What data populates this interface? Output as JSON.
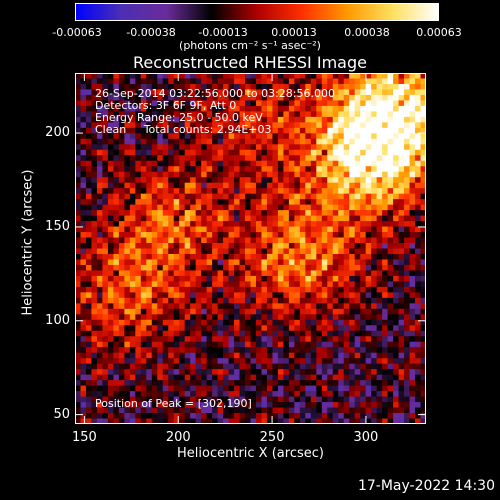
{
  "colorbar": {
    "ticks": [
      "-0.00063",
      "-0.00038",
      "-0.00013",
      "0.00013",
      "0.00038",
      "0.00063"
    ],
    "unit_label": "(photons cm⁻² s⁻¹ asec⁻²)",
    "colormap": [
      "#0000ff",
      "#4b2fb4",
      "#6a2c9a",
      "#000000",
      "#b00000",
      "#ff3000",
      "#ff9a00",
      "#ffe060",
      "#ffffff"
    ]
  },
  "annotations": {
    "line1": "26-Sep-2014 03:22:56.000 to 03:28:56.000",
    "line2": "Detectors: 3F 6F 9F, Att 0",
    "line3": "Energy Range: 25.0 - 50.0 keV",
    "line4": "Clean     Total counts: 2.94E+03",
    "peak": "Position of Peak = [302,190]"
  },
  "footer": {
    "timestamp": "17-May-2022 14:30"
  },
  "chart_data": {
    "type": "heatmap",
    "title": "Reconstructed RHESSI Image",
    "xlabel": "Heliocentric X (arcsec)",
    "ylabel": "Heliocentric Y (arcsec)",
    "xlim": [
      145,
      332
    ],
    "ylim": [
      45,
      232
    ],
    "xticks": [
      150,
      200,
      250,
      300
    ],
    "yticks": [
      50,
      100,
      150,
      200
    ],
    "value_range": [
      -0.00063,
      0.00063
    ],
    "peak": {
      "x": 302,
      "y": 190
    },
    "bright_regions": [
      {
        "x": 302,
        "y": 190,
        "strength": 1.0
      },
      {
        "x": 318,
        "y": 215,
        "strength": 0.7
      },
      {
        "x": 265,
        "y": 135,
        "strength": 0.55
      },
      {
        "x": 195,
        "y": 150,
        "strength": 0.45
      },
      {
        "x": 170,
        "y": 110,
        "strength": 0.35
      },
      {
        "x": 240,
        "y": 205,
        "strength": 0.3
      }
    ]
  }
}
